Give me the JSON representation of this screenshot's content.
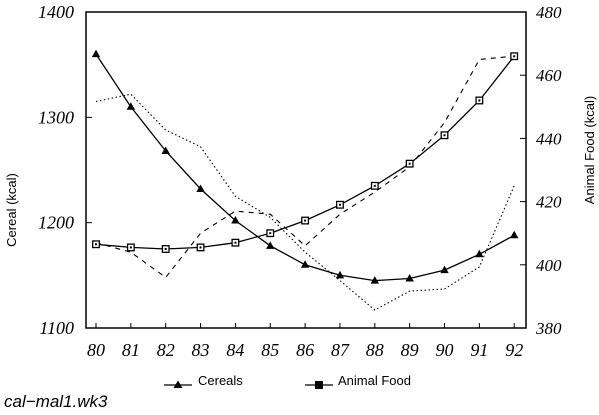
{
  "chart_data": {
    "type": "line",
    "x": [
      "80",
      "81",
      "82",
      "83",
      "84",
      "85",
      "86",
      "87",
      "88",
      "89",
      "90",
      "91",
      "92"
    ],
    "y_left": {
      "label": "Cereal (kcal)",
      "ticks": [
        "1100",
        "1200",
        "1300",
        "1400"
      ],
      "range": [
        1100,
        1400
      ]
    },
    "y_right": {
      "label": "Animal Food (kcal)",
      "ticks": [
        "380",
        "400",
        "420",
        "440",
        "460",
        "480"
      ],
      "range": [
        380,
        480
      ]
    },
    "series": [
      {
        "name": "Cereals",
        "axis": "left",
        "marker": "triangle",
        "style": "solid",
        "values": [
          1360,
          1310,
          1268,
          1232,
          1202,
          1178,
          1160,
          1150,
          1145,
          1147,
          1155,
          1170,
          1188
        ]
      },
      {
        "name": "Animal Food",
        "axis": "right",
        "marker": "square",
        "style": "solid",
        "values": [
          406.5,
          405.5,
          405,
          405.5,
          407,
          410,
          414,
          419,
          425,
          432,
          441,
          452,
          466
        ]
      },
      {
        "axis": "left",
        "marker": "none",
        "style": "dotted",
        "values": [
          1315,
          1322,
          1288,
          1272,
          1225,
          1205,
          1172,
          1145,
          1117,
          1135,
          1137,
          1158,
          1235
        ]
      },
      {
        "axis": "right",
        "marker": "none",
        "style": "dashed",
        "values": [
          407,
          404,
          396,
          410,
          417,
          416,
          406,
          416,
          423,
          431,
          445,
          465,
          466
        ]
      }
    ],
    "legend": {
      "placement": "bottom"
    },
    "grid": false
  },
  "caption": "cal−mal1.wk3"
}
